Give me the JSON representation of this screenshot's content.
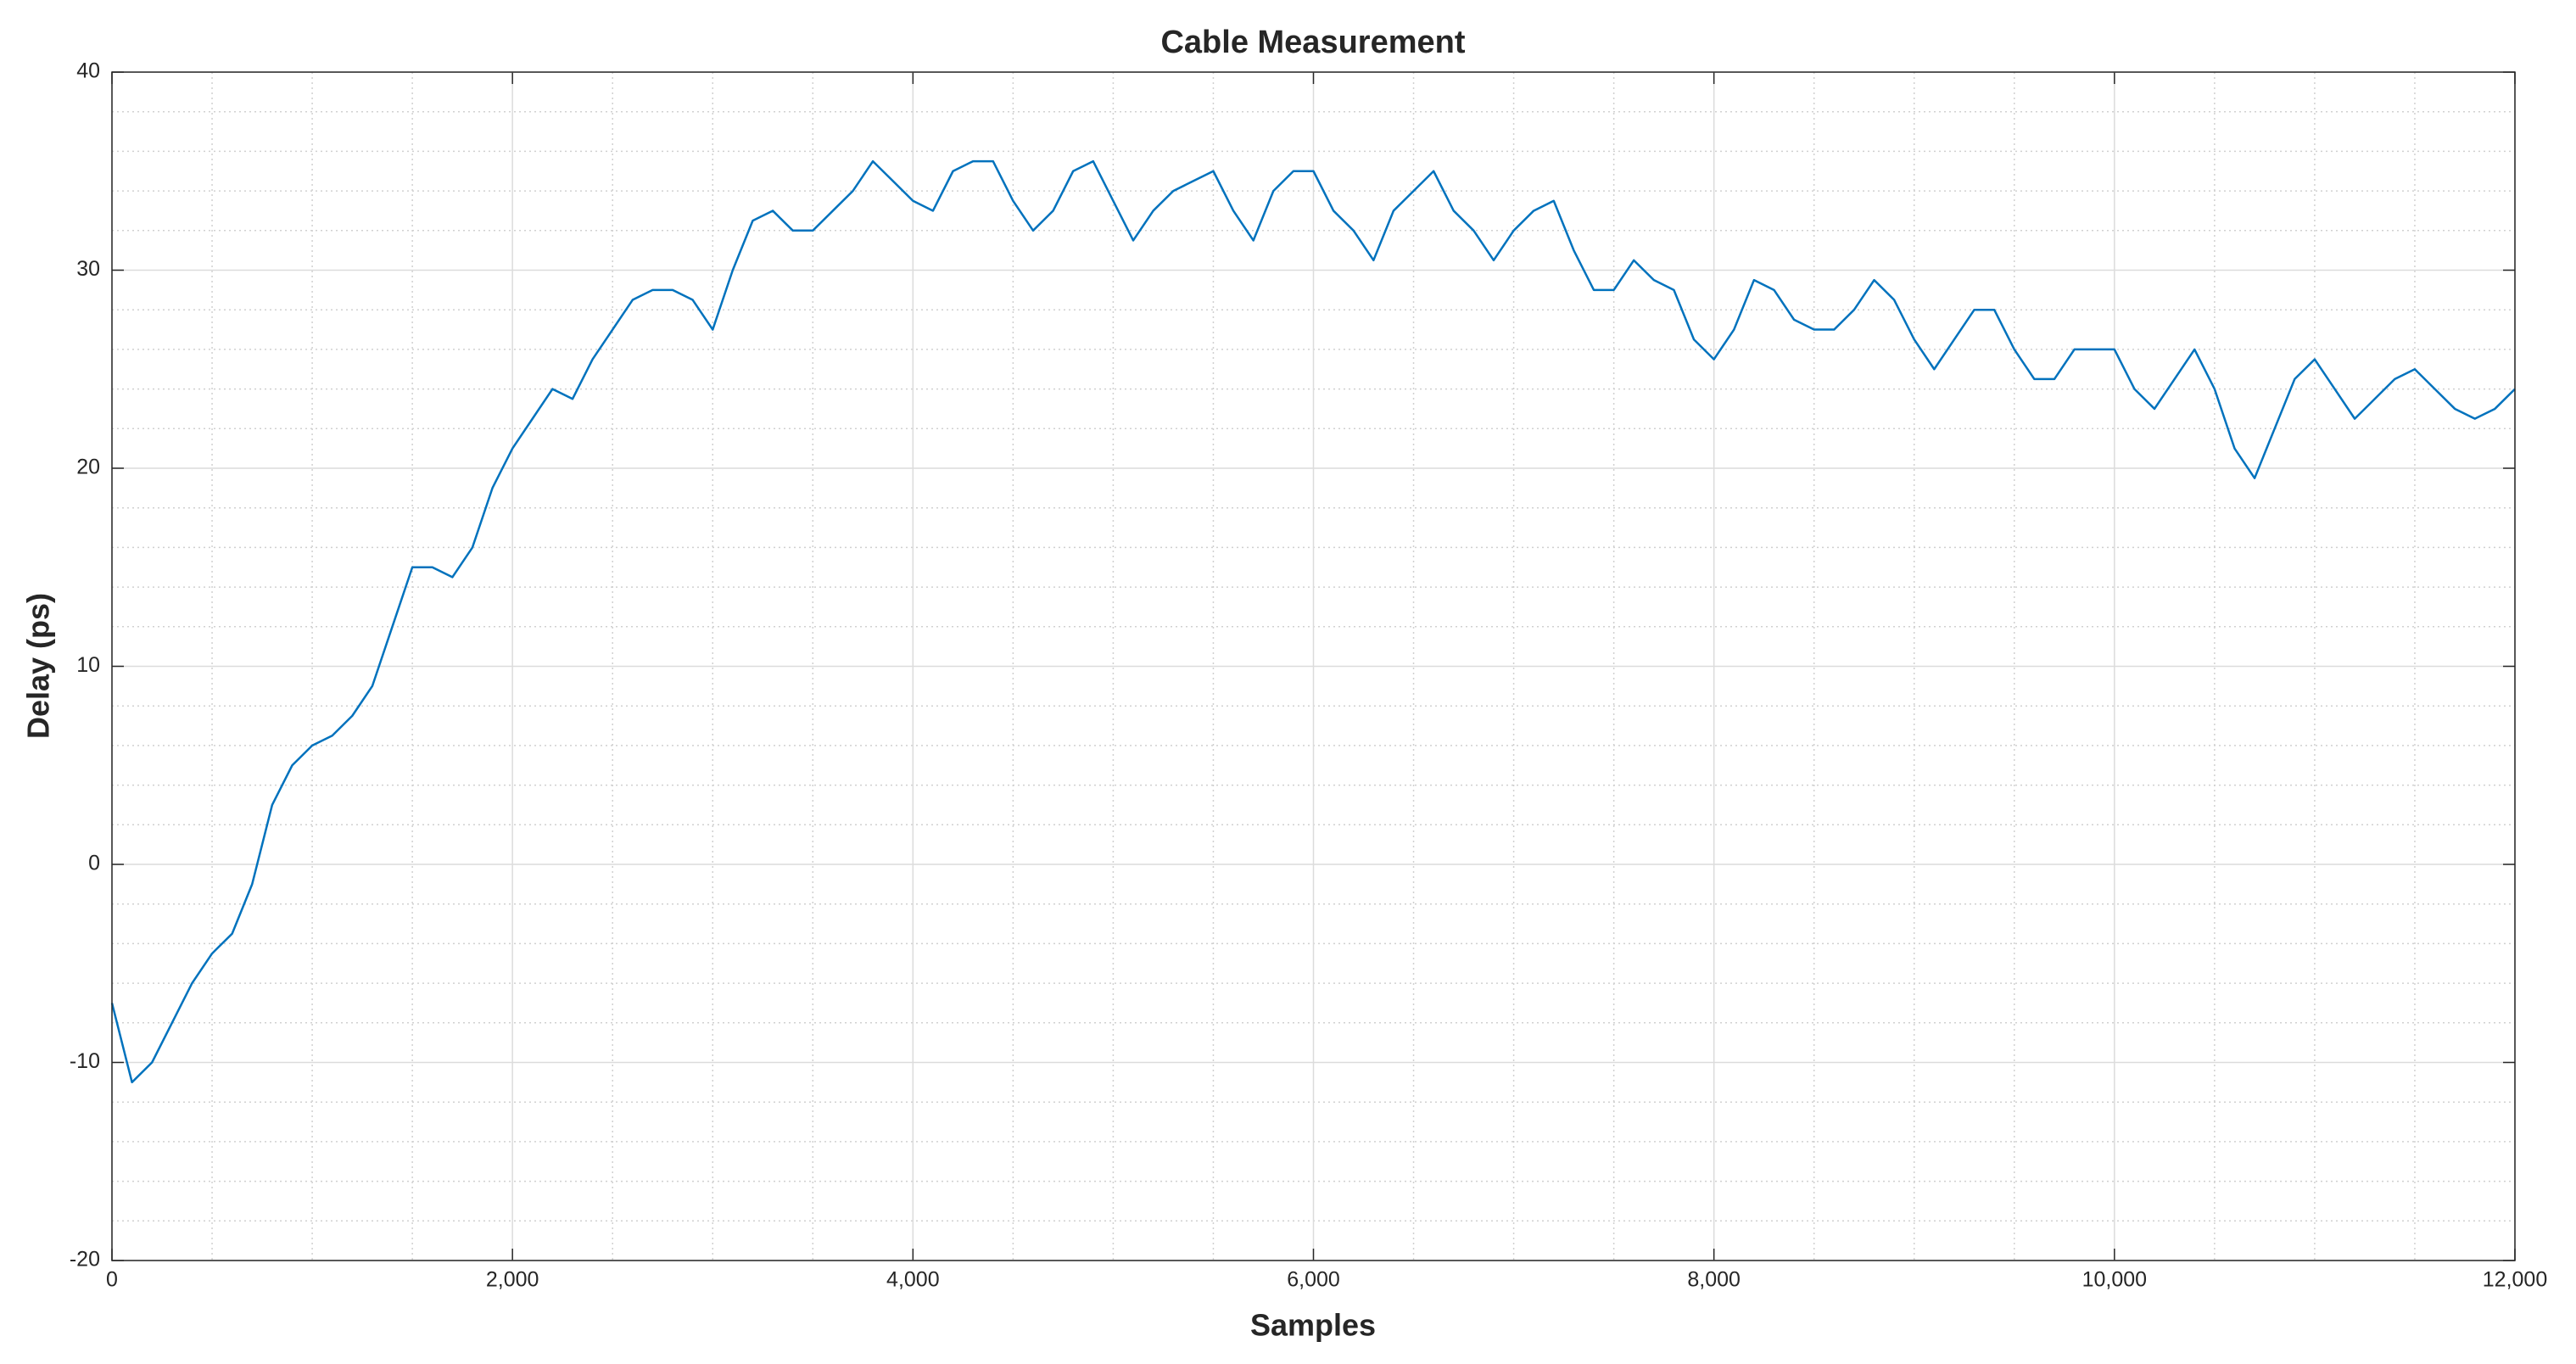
{
  "chart_data": {
    "type": "line",
    "title": "Cable Measurement",
    "x_label": "Samples",
    "y_label": "Delay (ps)",
    "x": [
      0,
      100,
      200,
      300,
      400,
      500,
      600,
      700,
      800,
      900,
      1000,
      1100,
      1200,
      1300,
      1400,
      1500,
      1600,
      1700,
      1800,
      1900,
      2000,
      2100,
      2200,
      2300,
      2400,
      2500,
      2600,
      2700,
      2800,
      2900,
      3000,
      3100,
      3200,
      3300,
      3400,
      3500,
      3600,
      3700,
      3800,
      3900,
      4000,
      4100,
      4200,
      4300,
      4400,
      4500,
      4600,
      4700,
      4800,
      4900,
      5000,
      5100,
      5200,
      5300,
      5400,
      5500,
      5600,
      5700,
      5800,
      5900,
      6000,
      6100,
      6200,
      6300,
      6400,
      6500,
      6600,
      6700,
      6800,
      6900,
      7000,
      7100,
      7200,
      7300,
      7400,
      7500,
      7600,
      7700,
      7800,
      7900,
      8000,
      8100,
      8200,
      8300,
      8400,
      8500,
      8600,
      8700,
      8800,
      8900,
      9000,
      9100,
      9200,
      9300,
      9400,
      9500,
      9600,
      9700,
      9800,
      9900,
      10000,
      10100,
      10200,
      10300,
      10400,
      10500,
      10600,
      10700,
      10800,
      10900,
      11000,
      11100,
      11200,
      11300,
      11400,
      11500,
      11600,
      11700,
      11800,
      11900,
      12000
    ],
    "series": [
      {
        "name": "Delay",
        "color": "#0072bd",
        "values": [
          -7,
          -11,
          -10,
          -8,
          -6,
          -4.5,
          -3.5,
          -1,
          3,
          5,
          6,
          6.5,
          7.5,
          9,
          12,
          15,
          15,
          14.5,
          16,
          19,
          21,
          22.5,
          24,
          23.5,
          25.5,
          27,
          28.5,
          29,
          29,
          28.5,
          27,
          30,
          32.5,
          33,
          32,
          32,
          33,
          34,
          35.5,
          34.5,
          33.5,
          33,
          35,
          35.5,
          35.5,
          33.5,
          32,
          33,
          35,
          35.5,
          33.5,
          31.5,
          33,
          34,
          34.5,
          35,
          33,
          31.5,
          34,
          35,
          35,
          33,
          32,
          30.5,
          33,
          34,
          35,
          33,
          32,
          30.5,
          32,
          33,
          33.5,
          31,
          29,
          29,
          30.5,
          29.5,
          29,
          26.5,
          25.5,
          27,
          29.5,
          29,
          27.5,
          27,
          27,
          28,
          29.5,
          28.5,
          26.5,
          25,
          26.5,
          28,
          28,
          26,
          24.5,
          24.5,
          26,
          26,
          26,
          24,
          23,
          24.5,
          26,
          24,
          21,
          19.5,
          22,
          24.5,
          25.5,
          24,
          22.5,
          23.5,
          24.5,
          25,
          24,
          23,
          22.5,
          23,
          24
        ]
      }
    ],
    "xlim": [
      0,
      12000
    ],
    "xticks": [
      0,
      {
        "value": 2000,
        "label": "2,000"
      },
      {
        "value": 4000,
        "label": "4,000"
      },
      {
        "value": 6000,
        "label": "6,000"
      },
      {
        "value": 8000,
        "label": "8,000"
      },
      {
        "value": 10000,
        "label": "10,000"
      },
      {
        "value": 12000,
        "label": "12,000"
      }
    ],
    "ylim": [
      -20,
      40
    ],
    "yticks": [
      -20,
      -10,
      0,
      10,
      20,
      30,
      40
    ],
    "grid": true,
    "minor_grid": true
  }
}
